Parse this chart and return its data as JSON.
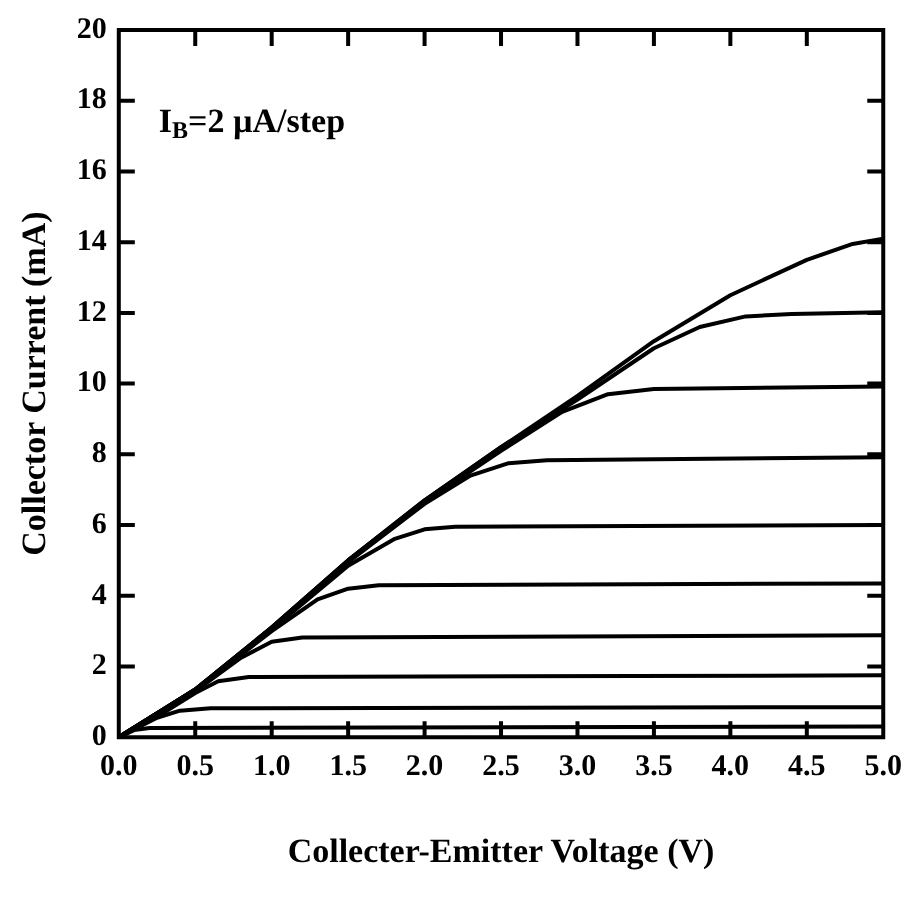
{
  "chart_data": {
    "type": "line",
    "xlabel": "Collecter-Emitter Voltage (V)",
    "ylabel": "Collector Current (mA)",
    "annotations": [
      "I$_{B}$=2 µA/step"
    ],
    "xlim": [
      0,
      5
    ],
    "xticks": [
      {
        "value": 0,
        "label": "0.0"
      },
      0.5,
      {
        "value": 1,
        "label": "1.0"
      },
      1.5,
      {
        "value": 2,
        "label": "2.0"
      },
      2.5,
      {
        "value": 3,
        "label": "3.0"
      },
      3.5,
      {
        "value": 4,
        "label": "4.0"
      },
      4.5,
      {
        "value": 5,
        "label": "5.0"
      }
    ],
    "ylim": [
      0,
      20
    ],
    "yticks": [
      0,
      2,
      4,
      6,
      8,
      10,
      12,
      14,
      16,
      18,
      20
    ],
    "legend": false,
    "marker": "none",
    "line_style": "solid",
    "series": [
      {
        "color": "#000000",
        "x": [
          0,
          0.1,
          0.2,
          5
        ],
        "values": [
          0,
          0.2,
          0.26,
          0.3
        ]
      },
      {
        "color": "#000000",
        "x": [
          0,
          0.25,
          0.4,
          0.6,
          5
        ],
        "values": [
          0,
          0.55,
          0.75,
          0.82,
          0.85
        ]
      },
      {
        "color": "#000000",
        "x": [
          0,
          0.25,
          0.5,
          0.65,
          0.85,
          5
        ],
        "values": [
          0,
          0.58,
          1.25,
          1.58,
          1.7,
          1.75
        ]
      },
      {
        "color": "#000000",
        "x": [
          0,
          0.5,
          0.8,
          1.0,
          1.2,
          5
        ],
        "values": [
          0,
          1.3,
          2.25,
          2.7,
          2.82,
          2.88
        ]
      },
      {
        "color": "#000000",
        "x": [
          0,
          0.5,
          1.0,
          1.3,
          1.5,
          1.7,
          5
        ],
        "values": [
          0,
          1.33,
          3.0,
          3.9,
          4.2,
          4.3,
          4.35
        ]
      },
      {
        "color": "#000000",
        "x": [
          0,
          0.5,
          1.0,
          1.5,
          1.8,
          2.0,
          2.2,
          5
        ],
        "values": [
          0,
          1.34,
          3.05,
          4.85,
          5.6,
          5.88,
          5.95,
          6.0
        ]
      },
      {
        "color": "#000000",
        "x": [
          0,
          0.5,
          1.0,
          1.5,
          2.0,
          2.3,
          2.55,
          2.8,
          5
        ],
        "values": [
          0,
          1.35,
          3.08,
          4.95,
          6.6,
          7.4,
          7.75,
          7.83,
          7.92
        ]
      },
      {
        "color": "#000000",
        "x": [
          0,
          0.5,
          1.0,
          1.5,
          2.0,
          2.5,
          2.9,
          3.2,
          3.5,
          5
        ],
        "values": [
          0,
          1.35,
          3.1,
          5.0,
          6.65,
          8.1,
          9.2,
          9.7,
          9.85,
          9.92
        ]
      },
      {
        "color": "#000000",
        "x": [
          0,
          0.5,
          1.0,
          1.5,
          2.0,
          2.5,
          3.0,
          3.5,
          3.8,
          4.1,
          4.4,
          5
        ],
        "values": [
          0,
          1.35,
          3.1,
          5.0,
          6.7,
          8.2,
          9.55,
          11.0,
          11.6,
          11.9,
          11.97,
          12.02
        ]
      },
      {
        "color": "#000000",
        "x": [
          0,
          0.25,
          0.5,
          1.0,
          1.5,
          2.0,
          2.5,
          3.0,
          3.5,
          4.0,
          4.5,
          4.8,
          5
        ],
        "values": [
          0,
          0.6,
          1.35,
          3.1,
          5.0,
          6.7,
          8.2,
          9.65,
          11.2,
          12.5,
          13.5,
          13.95,
          14.1
        ]
      }
    ]
  }
}
